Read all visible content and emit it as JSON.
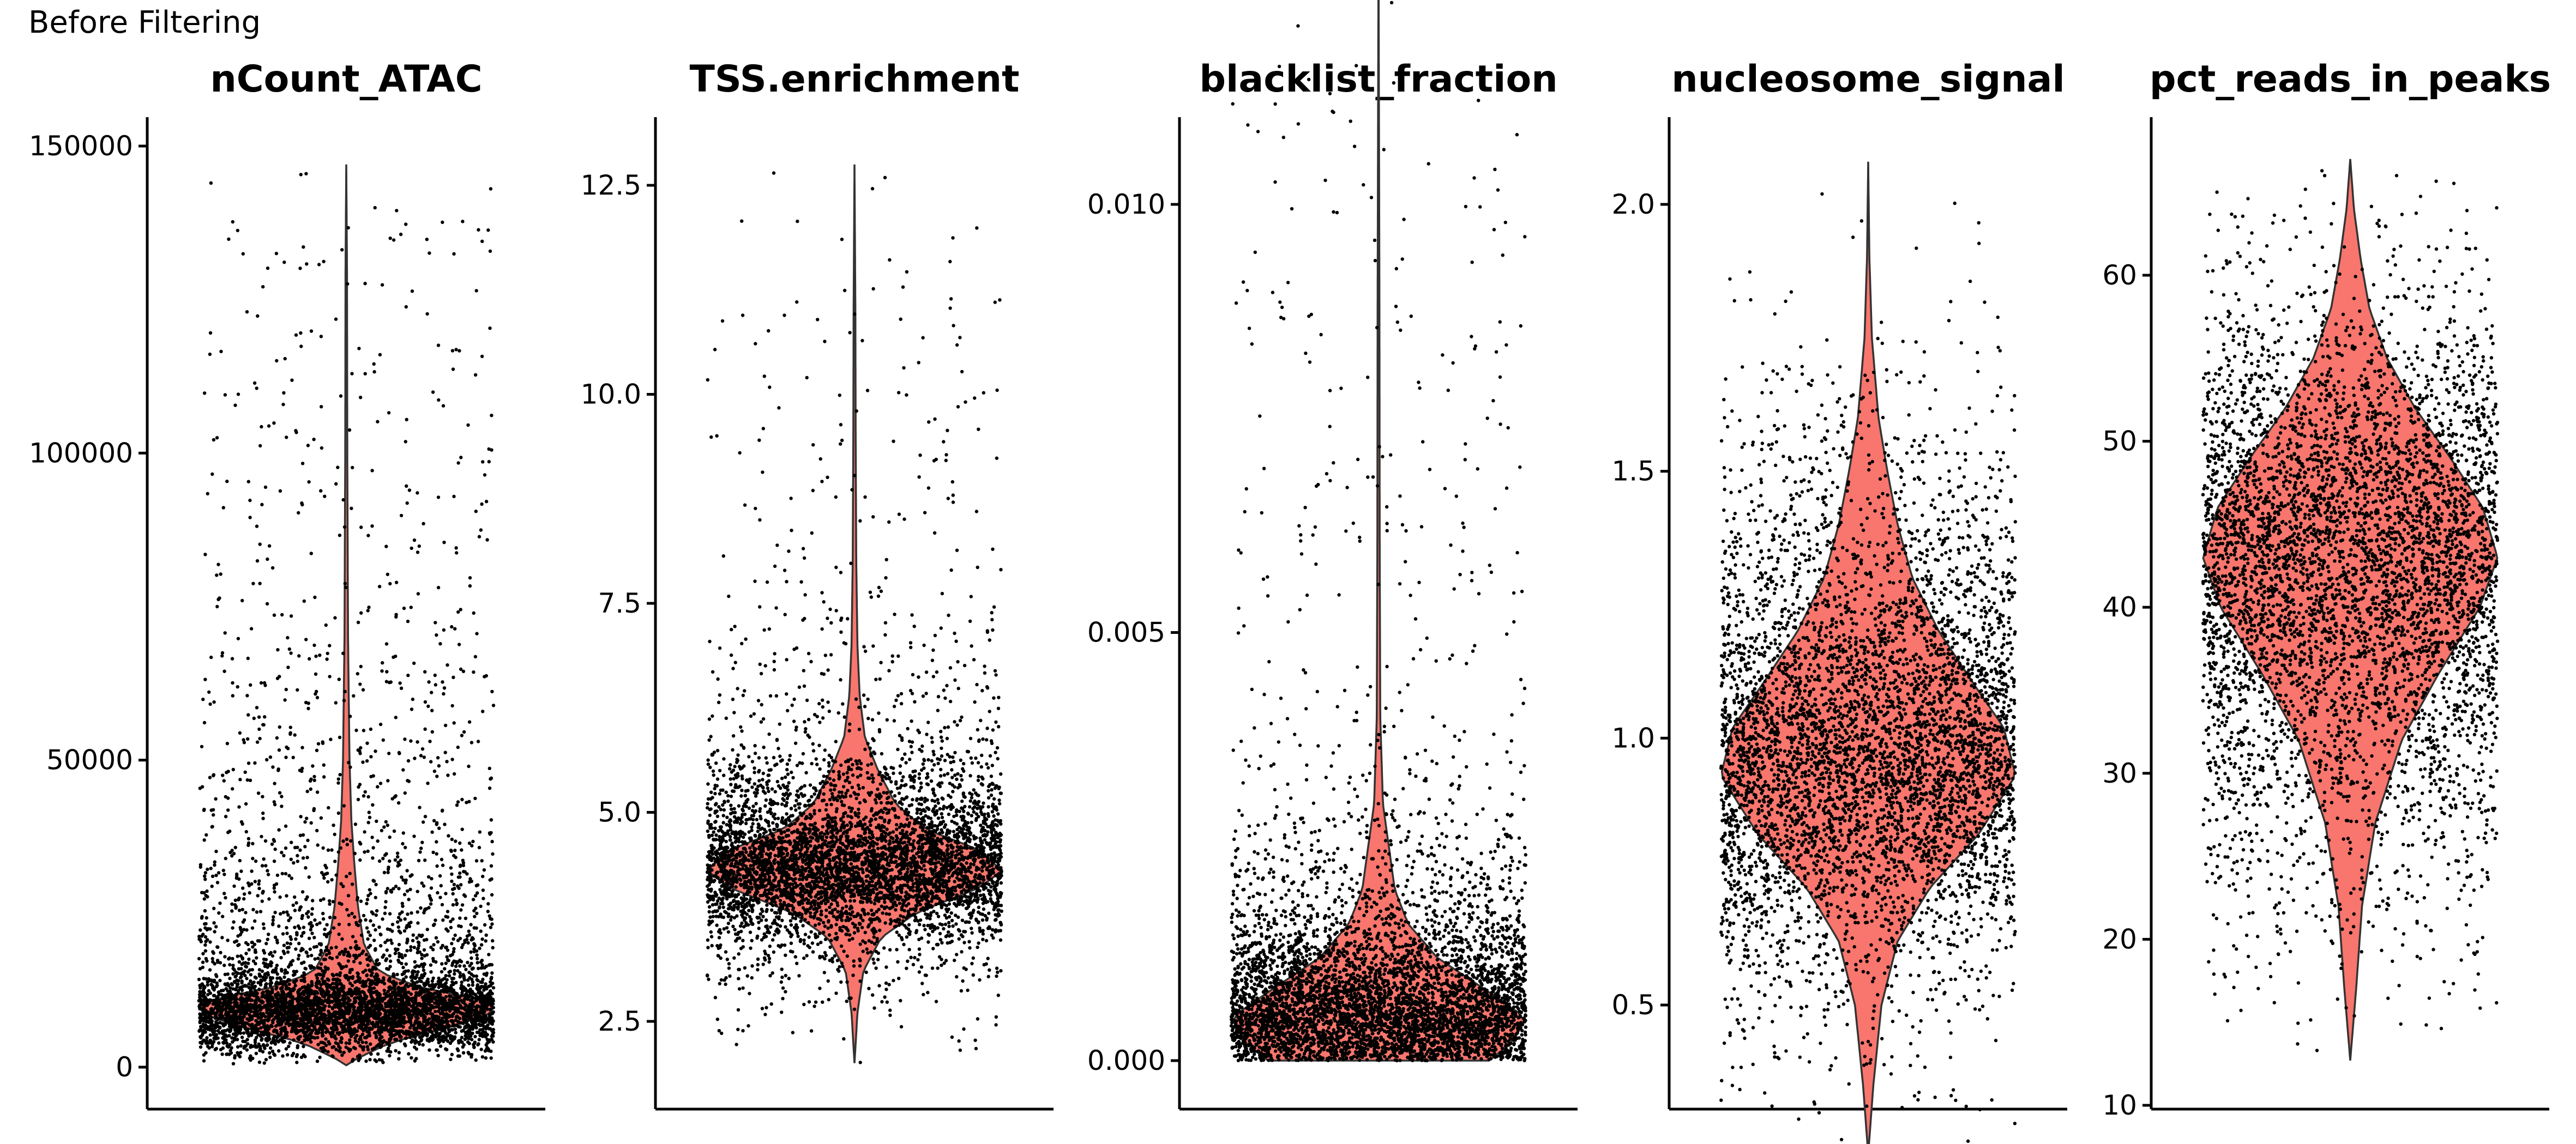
{
  "figure_title": "Before Filtering",
  "colors": {
    "violin_fill": "#f8766d",
    "violin_outline": "#333333",
    "points": "#000000"
  },
  "chart_data": [
    {
      "type": "violin",
      "title": "nCount_ATAC",
      "ylim": [
        -2000,
        150000
      ],
      "yticks": [
        0,
        50000,
        100000,
        150000
      ],
      "ytick_labels": [
        "0",
        "50000",
        "100000",
        "150000"
      ],
      "summary": {
        "min": 200,
        "median": 10000,
        "max": 147000
      },
      "density_profile": [
        [
          300,
          0.0
        ],
        [
          1500,
          0.08
        ],
        [
          4000,
          0.3
        ],
        [
          6500,
          0.7
        ],
        [
          8500,
          0.96
        ],
        [
          9700,
          1.0
        ],
        [
          11000,
          0.92
        ],
        [
          13000,
          0.5
        ],
        [
          15500,
          0.22
        ],
        [
          20000,
          0.12
        ],
        [
          26000,
          0.08
        ],
        [
          33000,
          0.055
        ],
        [
          40000,
          0.035
        ],
        [
          50000,
          0.022
        ],
        [
          70000,
          0.012
        ],
        [
          100000,
          0.007
        ],
        [
          130000,
          0.005
        ],
        [
          147000,
          0.0
        ]
      ]
    },
    {
      "type": "violin",
      "title": "TSS.enrichment",
      "ylim": [
        1.8,
        13.2
      ],
      "yticks": [
        2.5,
        5.0,
        7.5,
        10.0,
        12.5
      ],
      "ytick_labels": [
        "2.5",
        "5.0",
        "7.5",
        "10.0",
        "12.5"
      ],
      "summary": {
        "min": 2.0,
        "median": 4.3,
        "max": 12.75
      },
      "density_profile": [
        [
          2.0,
          0.0
        ],
        [
          2.6,
          0.02
        ],
        [
          3.1,
          0.06
        ],
        [
          3.5,
          0.18
        ],
        [
          3.8,
          0.42
        ],
        [
          4.1,
          0.85
        ],
        [
          4.3,
          1.0
        ],
        [
          4.55,
          0.85
        ],
        [
          4.8,
          0.48
        ],
        [
          5.1,
          0.28
        ],
        [
          5.5,
          0.16
        ],
        [
          5.9,
          0.07
        ],
        [
          6.4,
          0.035
        ],
        [
          7.0,
          0.02
        ],
        [
          8.0,
          0.012
        ],
        [
          9.5,
          0.008
        ],
        [
          11.0,
          0.006
        ],
        [
          12.75,
          0.0
        ]
      ]
    },
    {
      "type": "violin",
      "title": "blacklist_fraction",
      "ylim": [
        -0.0002,
        0.0137
      ],
      "yticks": [
        0.0,
        0.005,
        0.01
      ],
      "ytick_labels": [
        "0.000",
        "0.005",
        "0.010"
      ],
      "summary": {
        "min": 0.0,
        "median": 0.0006,
        "max": 0.013
      },
      "density_profile": [
        [
          0.0,
          0.75
        ],
        [
          0.0002,
          0.9
        ],
        [
          0.0005,
          1.0
        ],
        [
          0.0008,
          0.75
        ],
        [
          0.0012,
          0.4
        ],
        [
          0.0016,
          0.2
        ],
        [
          0.002,
          0.11
        ],
        [
          0.0025,
          0.07
        ],
        [
          0.003,
          0.03
        ],
        [
          0.004,
          0.012
        ],
        [
          0.006,
          0.008
        ],
        [
          0.009,
          0.006
        ],
        [
          0.013,
          0.0
        ]
      ]
    },
    {
      "type": "violin",
      "title": "nucleosome_signal",
      "ylim": [
        0.2,
        2.2
      ],
      "yticks": [
        0.5,
        1.0,
        1.5,
        2.0
      ],
      "ytick_labels": [
        "0.5",
        "1.0",
        "1.5",
        "2.0"
      ],
      "summary": {
        "min": 0.22,
        "median": 0.94,
        "max": 2.08
      },
      "density_profile": [
        [
          0.22,
          0.0
        ],
        [
          0.35,
          0.035
        ],
        [
          0.5,
          0.09
        ],
        [
          0.62,
          0.2
        ],
        [
          0.72,
          0.42
        ],
        [
          0.82,
          0.75
        ],
        [
          0.93,
          1.0
        ],
        [
          1.02,
          0.92
        ],
        [
          1.1,
          0.72
        ],
        [
          1.2,
          0.48
        ],
        [
          1.3,
          0.3
        ],
        [
          1.4,
          0.2
        ],
        [
          1.5,
          0.13
        ],
        [
          1.6,
          0.07
        ],
        [
          1.75,
          0.025
        ],
        [
          1.9,
          0.008
        ],
        [
          2.08,
          0.0
        ]
      ]
    },
    {
      "type": "violin",
      "title": "pct_reads_in_peaks",
      "ylim": [
        10,
        67
      ],
      "yticks": [
        10,
        20,
        30,
        40,
        50,
        60
      ],
      "ytick_labels": [
        "10",
        "20",
        "30",
        "40",
        "50",
        "60"
      ],
      "summary": {
        "min": 12.7,
        "median": 43,
        "max": 67
      },
      "density_profile": [
        [
          12.7,
          0.0
        ],
        [
          17,
          0.04
        ],
        [
          22,
          0.08
        ],
        [
          27,
          0.17
        ],
        [
          32,
          0.35
        ],
        [
          36,
          0.6
        ],
        [
          40,
          0.88
        ],
        [
          43,
          1.0
        ],
        [
          46,
          0.9
        ],
        [
          49,
          0.68
        ],
        [
          52,
          0.44
        ],
        [
          55,
          0.25
        ],
        [
          58,
          0.13
        ],
        [
          61,
          0.07
        ],
        [
          64,
          0.025
        ],
        [
          67,
          0.0
        ]
      ]
    }
  ]
}
